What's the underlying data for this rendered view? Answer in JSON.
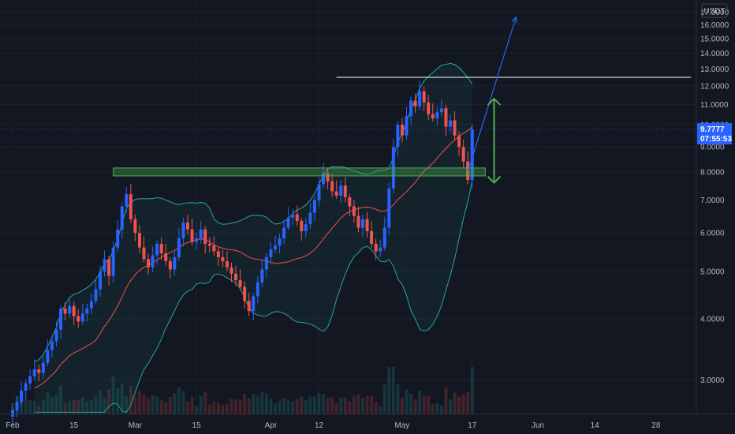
{
  "chart_data": {
    "type": "candlestick",
    "title": "",
    "quote_currency": "USDT",
    "y_scale": "log",
    "ylim": [
      2.55,
      18.0
    ],
    "y_ticks": [
      "17.0000",
      "16.0000",
      "15.0000",
      "14.0000",
      "13.0000",
      "12.0000",
      "11.0000",
      "10.0000",
      "9.0000",
      "8.0000",
      "7.0000",
      "6.0000",
      "5.0000",
      "4.0000",
      "3.0000"
    ],
    "x_tick_labels": [
      {
        "label": "Feb",
        "index": 0
      },
      {
        "label": "15",
        "index": 14
      },
      {
        "label": "Mar",
        "index": 28
      },
      {
        "label": "15",
        "index": 42
      },
      {
        "label": "Apr",
        "index": 59
      },
      {
        "label": "12",
        "index": 70
      },
      {
        "label": "May",
        "index": 89
      },
      {
        "label": "17",
        "index": 105
      },
      {
        "label": "Jun",
        "index": 120
      },
      {
        "label": "14",
        "index": 133
      },
      {
        "label": "28",
        "index": 147
      }
    ],
    "last_price": "9.7777",
    "countdown": "07:55:53",
    "closes": [
      2.6,
      2.7,
      2.85,
      2.95,
      3.05,
      3.15,
      3.1,
      3.25,
      3.45,
      3.6,
      3.8,
      4.2,
      4.1,
      4.25,
      4.05,
      3.95,
      4.1,
      4.2,
      4.35,
      4.6,
      5.0,
      5.3,
      4.9,
      5.6,
      6.1,
      6.8,
      7.2,
      6.4,
      6.0,
      5.6,
      5.3,
      5.1,
      5.4,
      5.7,
      5.45,
      5.25,
      5.05,
      5.35,
      5.85,
      6.3,
      6.1,
      5.75,
      5.85,
      6.1,
      5.7,
      5.65,
      5.5,
      5.35,
      5.25,
      5.1,
      4.95,
      4.8,
      4.65,
      4.35,
      4.15,
      4.45,
      4.75,
      5.05,
      5.35,
      5.55,
      5.65,
      5.85,
      6.15,
      6.45,
      6.55,
      6.35,
      6.05,
      6.25,
      6.6,
      7.0,
      7.55,
      7.95,
      7.65,
      7.3,
      7.15,
      7.5,
      7.1,
      6.8,
      6.5,
      6.15,
      6.4,
      6.05,
      5.7,
      5.5,
      5.6,
      6.15,
      7.4,
      9.0,
      10.0,
      9.5,
      10.4,
      11.2,
      10.9,
      11.7,
      11.1,
      10.5,
      10.3,
      10.6,
      10.8,
      9.9,
      10.2,
      9.5,
      9.0,
      8.4,
      7.7,
      9.7777
    ],
    "highs_offset_pct": 4,
    "bollinger_bands": {
      "period": 20,
      "stddev": 2,
      "colors": {
        "bands": "#26a69a",
        "basis": "#ef5350"
      }
    },
    "volume_bars": true,
    "annotations": {
      "resistance_line": {
        "price": 12.5,
        "from_index": 74,
        "to_index": 155,
        "color": "#ffffff"
      },
      "support_zone": {
        "low": 7.85,
        "high": 8.15,
        "from_index": 23,
        "to_index": 108,
        "color": "#4caf50"
      },
      "trend_arrow": {
        "from_index": 104,
        "from_price": 8.0,
        "to_index": 115,
        "to_price": 16.6,
        "color": "#2962ff"
      },
      "range_arrow": {
        "index": 110,
        "top": 11.3,
        "bottom": 7.6,
        "color": "#4caf50"
      }
    },
    "colors": {
      "up": "#2962ff",
      "down": "#ef5350",
      "background": "#131722",
      "grid": "#1e222d",
      "axis_text": "#b2b5be",
      "price_tag": "#2962ff"
    }
  }
}
